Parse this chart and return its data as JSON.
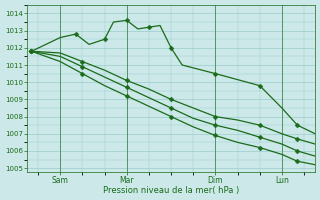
{
  "xlabel": "Pression niveau de la mer( hPa )",
  "bg_color": "#cce8e8",
  "grid_color": "#99cccc",
  "line_color": "#1a6b1a",
  "ylim": [
    1004.8,
    1014.5
  ],
  "yticks": [
    1005,
    1006,
    1007,
    1008,
    1009,
    1010,
    1011,
    1012,
    1013,
    1014
  ],
  "xlim": [
    0,
    13
  ],
  "x_tick_labels": [
    "Sam",
    "Mar",
    "Dim",
    "Lun"
  ],
  "x_tick_positions": [
    1.5,
    4.5,
    8.5,
    11.5
  ],
  "vline_positions": [
    1.5,
    4.5,
    8.5,
    11.5
  ],
  "s1x": [
    0.2,
    1.5,
    2.2,
    2.8,
    3.5,
    3.9,
    4.5,
    5.0,
    5.5,
    6.0,
    6.5,
    7.0,
    8.5,
    9.5,
    10.5,
    11.5,
    12.2,
    13.0
  ],
  "s1y": [
    1011.8,
    1012.6,
    1012.8,
    1012.2,
    1012.5,
    1013.5,
    1013.6,
    1013.1,
    1013.2,
    1013.3,
    1012.0,
    1011.0,
    1010.5,
    1010.15,
    1009.8,
    1008.5,
    1007.5,
    1007.0
  ],
  "s2x": [
    0.2,
    1.5,
    2.5,
    3.5,
    4.5,
    5.5,
    6.5,
    7.5,
    8.5,
    9.5,
    10.5,
    11.5,
    12.2,
    13.0
  ],
  "s2y": [
    1011.8,
    1011.7,
    1011.2,
    1010.7,
    1010.1,
    1009.6,
    1009.0,
    1008.5,
    1008.0,
    1007.8,
    1007.5,
    1007.0,
    1006.7,
    1006.4
  ],
  "s3x": [
    0.2,
    1.5,
    2.5,
    3.5,
    4.5,
    5.5,
    6.5,
    7.5,
    8.5,
    9.5,
    10.5,
    11.5,
    12.2,
    13.0
  ],
  "s3y": [
    1011.8,
    1011.5,
    1010.9,
    1010.3,
    1009.7,
    1009.1,
    1008.5,
    1007.9,
    1007.5,
    1007.2,
    1006.8,
    1006.4,
    1006.0,
    1005.7
  ],
  "s4x": [
    0.2,
    1.5,
    2.5,
    3.5,
    4.5,
    5.5,
    6.5,
    7.5,
    8.5,
    9.5,
    10.5,
    11.5,
    12.2,
    13.0
  ],
  "s4y": [
    1011.8,
    1011.2,
    1010.5,
    1009.8,
    1009.2,
    1008.6,
    1008.0,
    1007.4,
    1006.9,
    1006.5,
    1006.2,
    1005.8,
    1005.4,
    1005.2
  ],
  "lw": 0.9,
  "ms": 2.5
}
